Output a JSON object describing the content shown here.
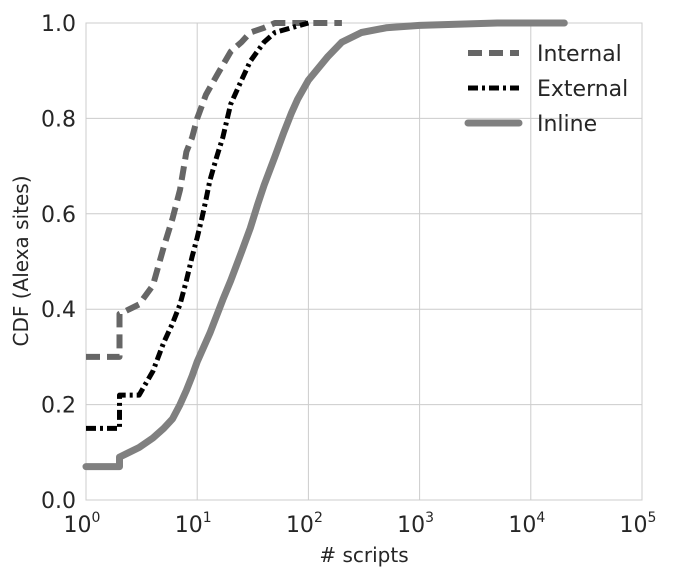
{
  "chart_data": {
    "type": "line",
    "xlabel": "# scripts",
    "ylabel": "CDF (Alexa sites)",
    "xscale": "log",
    "xlim": [
      1,
      100000
    ],
    "ylim": [
      0.0,
      1.0
    ],
    "grid": true,
    "legend_position": "top-right",
    "x_tick_base": "10",
    "x_ticks": [
      {
        "value": 1,
        "exp": "0"
      },
      {
        "value": 10,
        "exp": "1"
      },
      {
        "value": 100,
        "exp": "2"
      },
      {
        "value": 1000,
        "exp": "3"
      },
      {
        "value": 10000,
        "exp": "4"
      },
      {
        "value": 100000,
        "exp": "5"
      }
    ],
    "y_ticks": [
      {
        "value": 0.0,
        "label": "0.0"
      },
      {
        "value": 0.2,
        "label": "0.2"
      },
      {
        "value": 0.4,
        "label": "0.4"
      },
      {
        "value": 0.6,
        "label": "0.6"
      },
      {
        "value": 0.8,
        "label": "0.8"
      },
      {
        "value": 1.0,
        "label": "1.0"
      }
    ],
    "series": [
      {
        "name": "Internal",
        "color": "#666666",
        "style": "dashed",
        "points": [
          [
            1,
            0.3
          ],
          [
            2,
            0.3
          ],
          [
            2,
            0.39
          ],
          [
            3,
            0.41
          ],
          [
            4,
            0.45
          ],
          [
            5,
            0.53
          ],
          [
            6,
            0.59
          ],
          [
            7,
            0.65
          ],
          [
            8,
            0.73
          ],
          [
            9,
            0.76
          ],
          [
            10,
            0.8
          ],
          [
            12,
            0.85
          ],
          [
            15,
            0.89
          ],
          [
            20,
            0.94
          ],
          [
            25,
            0.96
          ],
          [
            30,
            0.98
          ],
          [
            40,
            0.99
          ],
          [
            50,
            1.0
          ],
          [
            200,
            1.0
          ]
        ]
      },
      {
        "name": "External",
        "color": "#000000",
        "style": "dashdot",
        "points": [
          [
            1,
            0.15
          ],
          [
            2,
            0.15
          ],
          [
            2,
            0.22
          ],
          [
            3,
            0.22
          ],
          [
            4,
            0.27
          ],
          [
            5,
            0.33
          ],
          [
            6,
            0.37
          ],
          [
            7,
            0.41
          ],
          [
            8,
            0.46
          ],
          [
            9,
            0.51
          ],
          [
            10,
            0.55
          ],
          [
            11,
            0.59
          ],
          [
            12,
            0.63
          ],
          [
            13,
            0.67
          ],
          [
            15,
            0.72
          ],
          [
            17,
            0.76
          ],
          [
            20,
            0.83
          ],
          [
            25,
            0.88
          ],
          [
            30,
            0.92
          ],
          [
            40,
            0.96
          ],
          [
            50,
            0.98
          ],
          [
            70,
            0.99
          ],
          [
            100,
            1.0
          ]
        ]
      },
      {
        "name": "Inline",
        "color": "#808080",
        "style": "solid",
        "points": [
          [
            1,
            0.07
          ],
          [
            2,
            0.07
          ],
          [
            2,
            0.09
          ],
          [
            3,
            0.11
          ],
          [
            4,
            0.13
          ],
          [
            5,
            0.15
          ],
          [
            6,
            0.17
          ],
          [
            7,
            0.2
          ],
          [
            8,
            0.23
          ],
          [
            9,
            0.26
          ],
          [
            10,
            0.29
          ],
          [
            13,
            0.35
          ],
          [
            17,
            0.42
          ],
          [
            20,
            0.46
          ],
          [
            25,
            0.52
          ],
          [
            30,
            0.57
          ],
          [
            35,
            0.62
          ],
          [
            40,
            0.66
          ],
          [
            50,
            0.72
          ],
          [
            60,
            0.77
          ],
          [
            70,
            0.81
          ],
          [
            80,
            0.84
          ],
          [
            100,
            0.88
          ],
          [
            150,
            0.93
          ],
          [
            200,
            0.96
          ],
          [
            300,
            0.98
          ],
          [
            500,
            0.99
          ],
          [
            1000,
            0.995
          ],
          [
            5000,
            1.0
          ],
          [
            20000,
            1.0
          ]
        ]
      }
    ]
  }
}
